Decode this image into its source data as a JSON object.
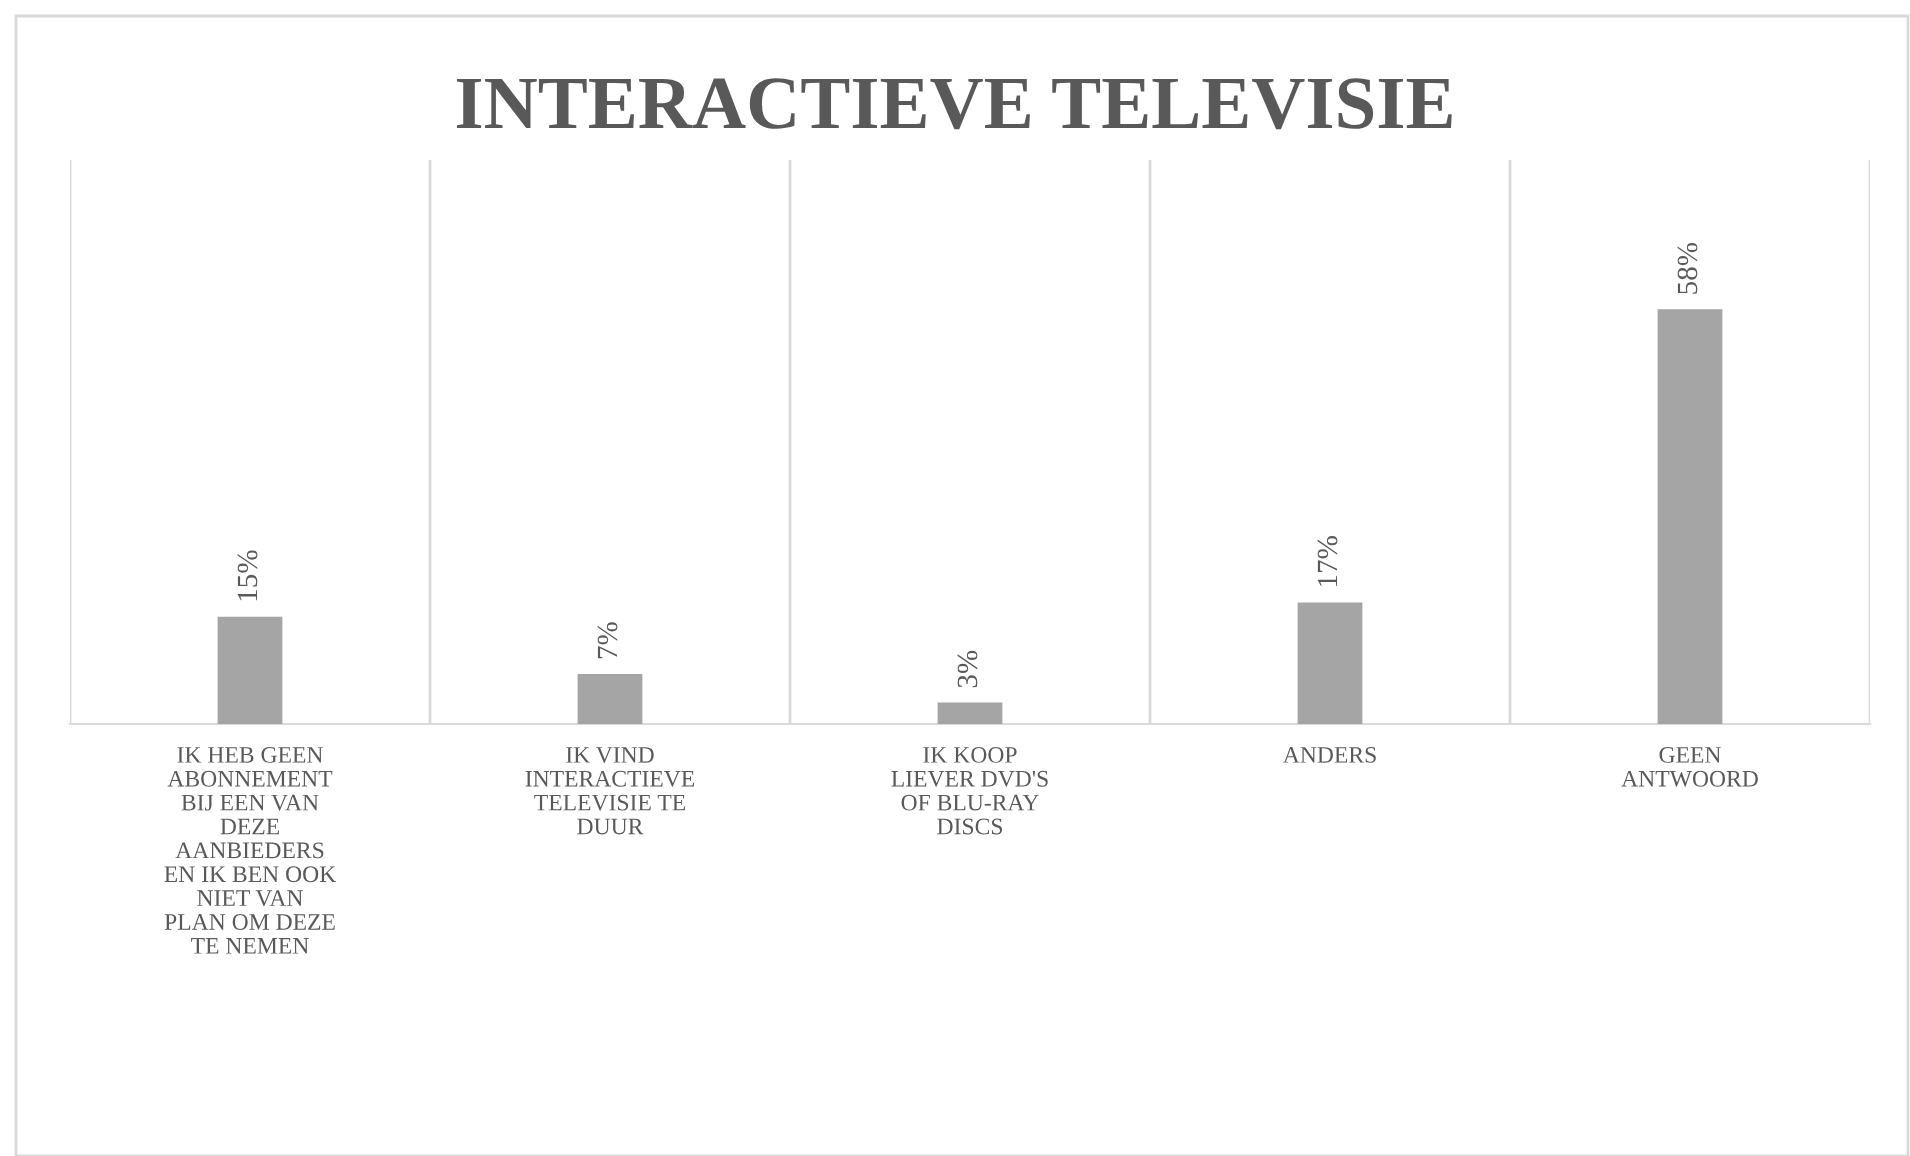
{
  "chart_data": {
    "type": "bar",
    "title": "INTERACTIEVE TELEVISIE",
    "categories": [
      "IK HEB GEEN\nABONNEMENT\nBIJ EEN VAN\nDEZE\nAANBIEDERS\nEN IK BEN OOK\nNIET VAN\nPLAN OM DEZE\nTE NEMEN",
      "IK VIND\nINTERACTIEVE\nTELEVISIE TE\nDUUR",
      "IK KOOP\nLIEVER DVD'S\nOF BLU-RAY\nDISCS",
      "ANDERS",
      "GEEN\nANTWOORD"
    ],
    "values": [
      15,
      7,
      3,
      17,
      58
    ],
    "value_labels": [
      "15%",
      "7%",
      "3%",
      "17%",
      "58%"
    ],
    "color": "#a5a5a5",
    "grid": "x",
    "legend": false
  }
}
